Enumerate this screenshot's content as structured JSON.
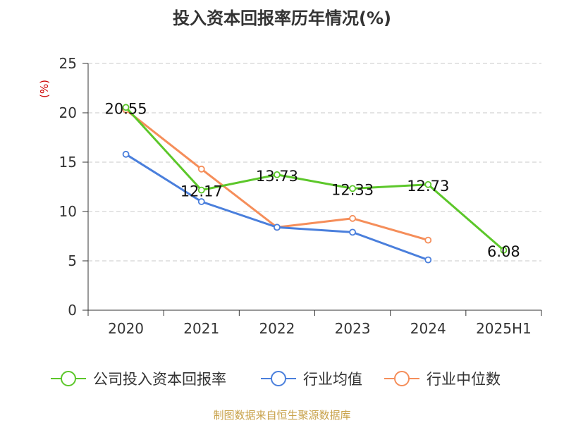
{
  "title": "投入资本回报率历年情况(%)",
  "source_text": "制图数据来自恒生聚源数据库",
  "chart_data": {
    "type": "line",
    "title": "投入资本回报率历年情况(%)",
    "ylabel": "(%)",
    "xlabel": "",
    "categories": [
      "2020",
      "2021",
      "2022",
      "2023",
      "2024",
      "2025H1"
    ],
    "ylim": [
      0,
      25
    ],
    "yticks": [
      0,
      5,
      10,
      15,
      20,
      25
    ],
    "grid": true,
    "legend_position": "bottom",
    "series": [
      {
        "name": "公司投入资本回报率",
        "color": "#5cc72a",
        "values": [
          20.55,
          12.17,
          13.73,
          12.33,
          12.73,
          6.08
        ],
        "labels": [
          "20.55",
          "12.17",
          "13.73",
          "12.33",
          "12.73",
          "6.08"
        ]
      },
      {
        "name": "行业均值",
        "color": "#4a7fdc",
        "values": [
          15.8,
          11.0,
          8.4,
          7.9,
          5.1,
          null
        ]
      },
      {
        "name": "行业中位数",
        "color": "#f58e5a",
        "values": [
          20.3,
          14.3,
          8.4,
          9.3,
          7.1,
          null
        ]
      }
    ]
  }
}
